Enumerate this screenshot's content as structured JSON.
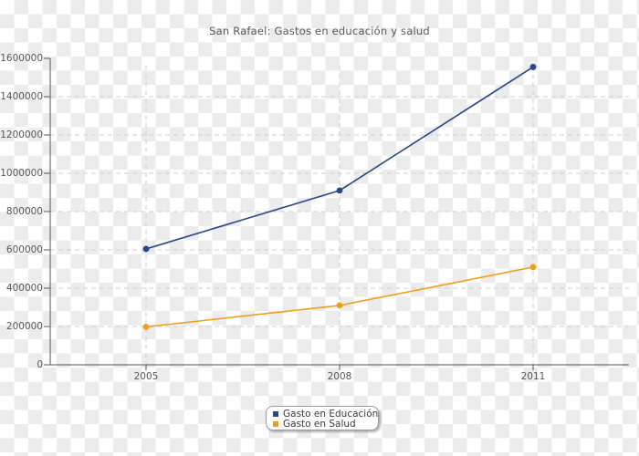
{
  "title": "San Rafael: Gastos en educación y salud",
  "chart_data": {
    "type": "line",
    "title": "San Rafael: Gastos en educación y salud",
    "categories": [
      "2005",
      "2008",
      "2011"
    ],
    "series": [
      {
        "name": "Gasto en Educación",
        "color": "#26458c",
        "values": [
          605000,
          910000,
          1555000
        ]
      },
      {
        "name": "Gasto en Salud",
        "color": "#f59c1c",
        "values": [
          198000,
          310000,
          510000
        ]
      }
    ],
    "xlabel": "",
    "ylabel": "",
    "ylim": [
      0,
      1600000
    ],
    "y_tick_step": 200000,
    "y_tick_labels": [
      "0",
      "200000",
      "400000",
      "600000",
      "800000",
      "1000000",
      "1200000",
      "1400000",
      "1600000"
    ],
    "grid": "dashed",
    "legend_position": "bottom-center"
  },
  "legend": {
    "items": [
      {
        "label": "Gasto en Educación",
        "color": "#26458c"
      },
      {
        "label": "Gasto en Salud",
        "color": "#f59c1c"
      }
    ]
  },
  "colors": {
    "axis": "#555555",
    "gridline": "#cfcfcf",
    "text": "#555555",
    "legend_border": "#9a9a9a",
    "checker_light": "#ffffff",
    "checker_gray": "#ececec"
  }
}
